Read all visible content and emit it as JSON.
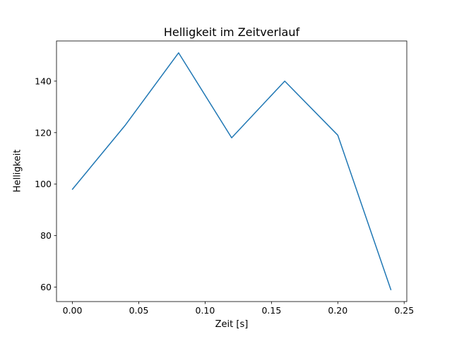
{
  "chart_data": {
    "type": "line",
    "title": "Helligkeit im Zeitverlauf",
    "xlabel": "Zeit [s]",
    "ylabel": "Helligkeit",
    "x": [
      0.0,
      0.04,
      0.08,
      0.12,
      0.16,
      0.2,
      0.24
    ],
    "y": [
      98,
      123,
      151,
      118,
      140,
      119,
      59
    ],
    "xlim": [
      -0.012,
      0.252
    ],
    "ylim": [
      54.4,
      155.6
    ],
    "xticks": [
      0.0,
      0.05,
      0.1,
      0.15,
      0.2,
      0.25
    ],
    "xtick_labels": [
      "0.00",
      "0.05",
      "0.10",
      "0.15",
      "0.20",
      "0.25"
    ],
    "yticks": [
      60,
      80,
      100,
      120,
      140
    ],
    "ytick_labels": [
      "60",
      "80",
      "100",
      "120",
      "140"
    ],
    "line_color": "#1f77b4",
    "background_color": "#ffffff",
    "grid": false,
    "legend": null
  }
}
